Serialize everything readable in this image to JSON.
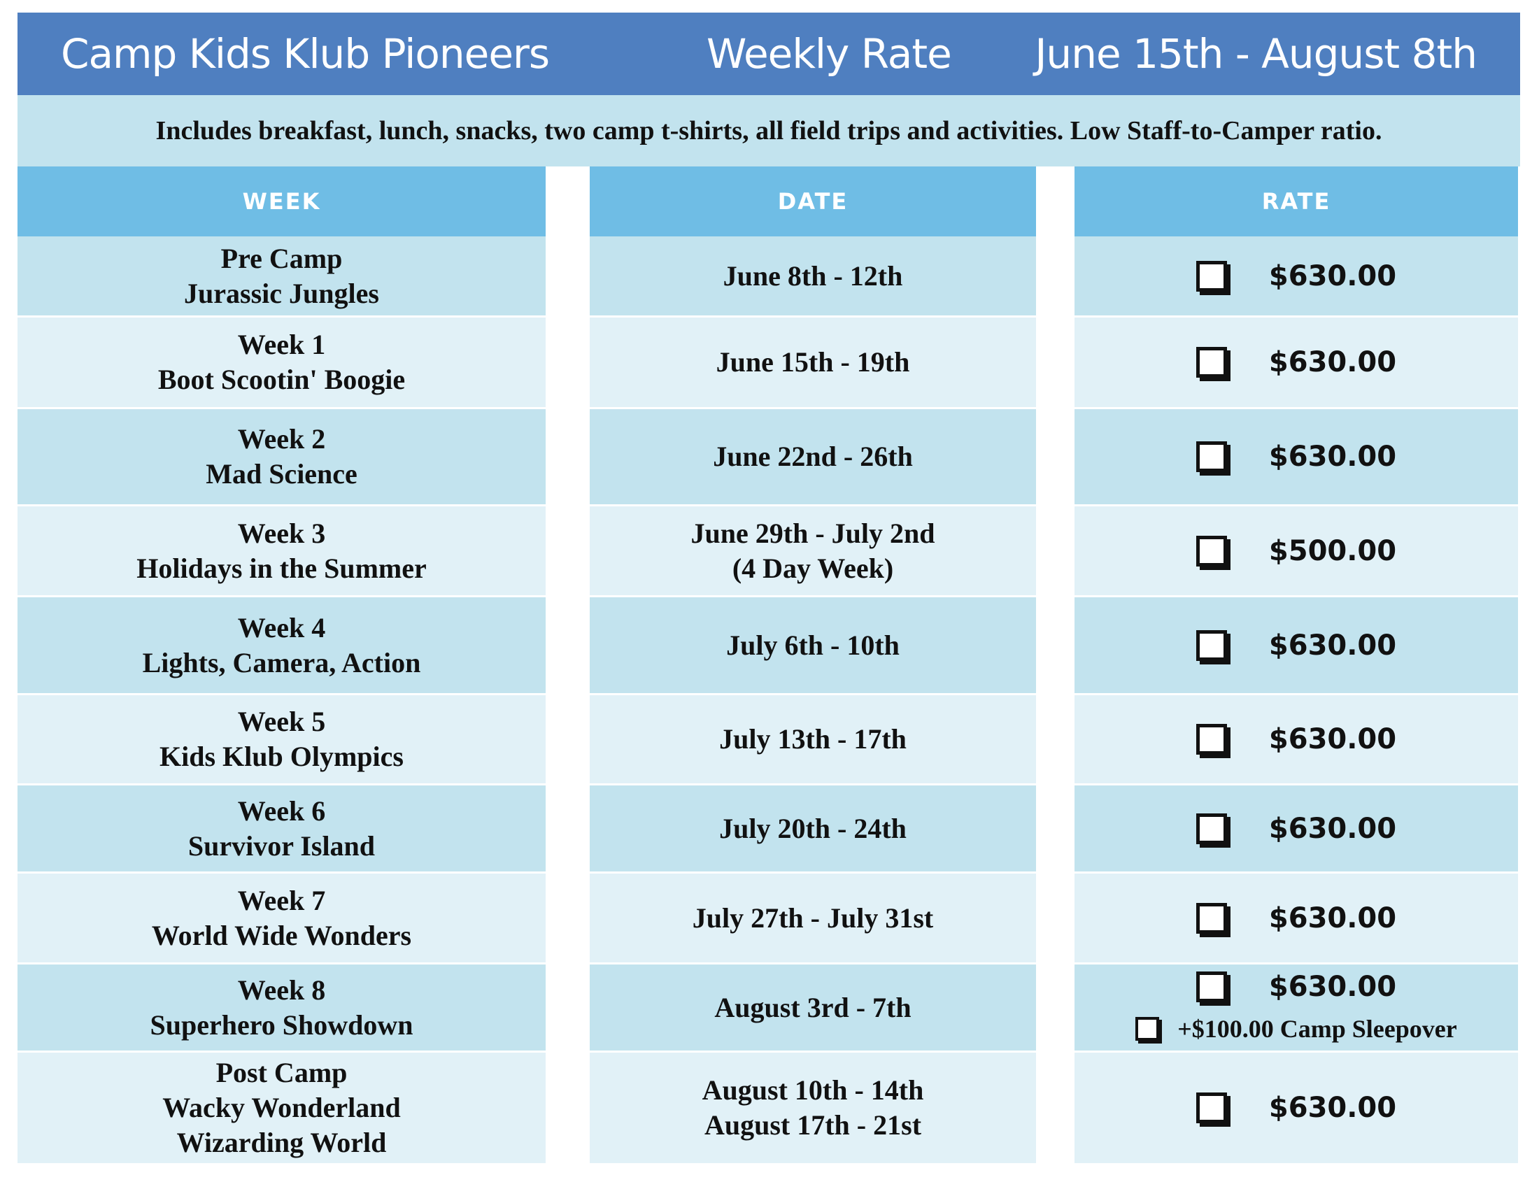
{
  "header": {
    "left": "Camp Kids Klub Pioneers",
    "center": "Weekly Rate",
    "right": "June 15th - August 8th"
  },
  "subheader": "Includes breakfast, lunch, snacks, two camp t-shirts, all field trips and activities. Low Staff-to-Camper ratio.",
  "table": {
    "columns": [
      "WEEK",
      "DATE",
      "RATE"
    ],
    "rows": [
      {
        "week": [
          "Pre Camp",
          "Jurassic Jungles"
        ],
        "date": [
          "June 8th - 12th"
        ],
        "rate": "$630.00"
      },
      {
        "week": [
          "Week 1",
          "Boot Scootin' Boogie"
        ],
        "date": [
          "June 15th - 19th"
        ],
        "rate": "$630.00"
      },
      {
        "week": [
          "Week 2",
          "Mad Science"
        ],
        "date": [
          "June 22nd - 26th"
        ],
        "rate": "$630.00"
      },
      {
        "week": [
          "Week 3",
          "Holidays in the Summer"
        ],
        "date": [
          "June 29th - July 2nd",
          "(4 Day Week)"
        ],
        "rate": "$500.00"
      },
      {
        "week": [
          "Week 4",
          "Lights, Camera, Action"
        ],
        "date": [
          "July 6th - 10th"
        ],
        "rate": "$630.00"
      },
      {
        "week": [
          "Week 5",
          "Kids Klub Olympics"
        ],
        "date": [
          "July 13th - 17th"
        ],
        "rate": "$630.00"
      },
      {
        "week": [
          "Week 6",
          "Survivor Island"
        ],
        "date": [
          "July 20th - 24th"
        ],
        "rate": "$630.00"
      },
      {
        "week": [
          "Week 7",
          "World Wide Wonders"
        ],
        "date": [
          "July 27th - July 31st"
        ],
        "rate": "$630.00"
      },
      {
        "week": [
          "Week 8",
          "Superhero Showdown"
        ],
        "date": [
          "August 3rd - 7th"
        ],
        "rate": "$630.00",
        "extra": "+$100.00 Camp Sleepover"
      },
      {
        "week": [
          "Post Camp",
          "Wacky Wonderland",
          "Wizarding World"
        ],
        "date": [
          "August 10th - 14th",
          "August 17th - 21st"
        ],
        "rate": "$630.00"
      }
    ]
  }
}
